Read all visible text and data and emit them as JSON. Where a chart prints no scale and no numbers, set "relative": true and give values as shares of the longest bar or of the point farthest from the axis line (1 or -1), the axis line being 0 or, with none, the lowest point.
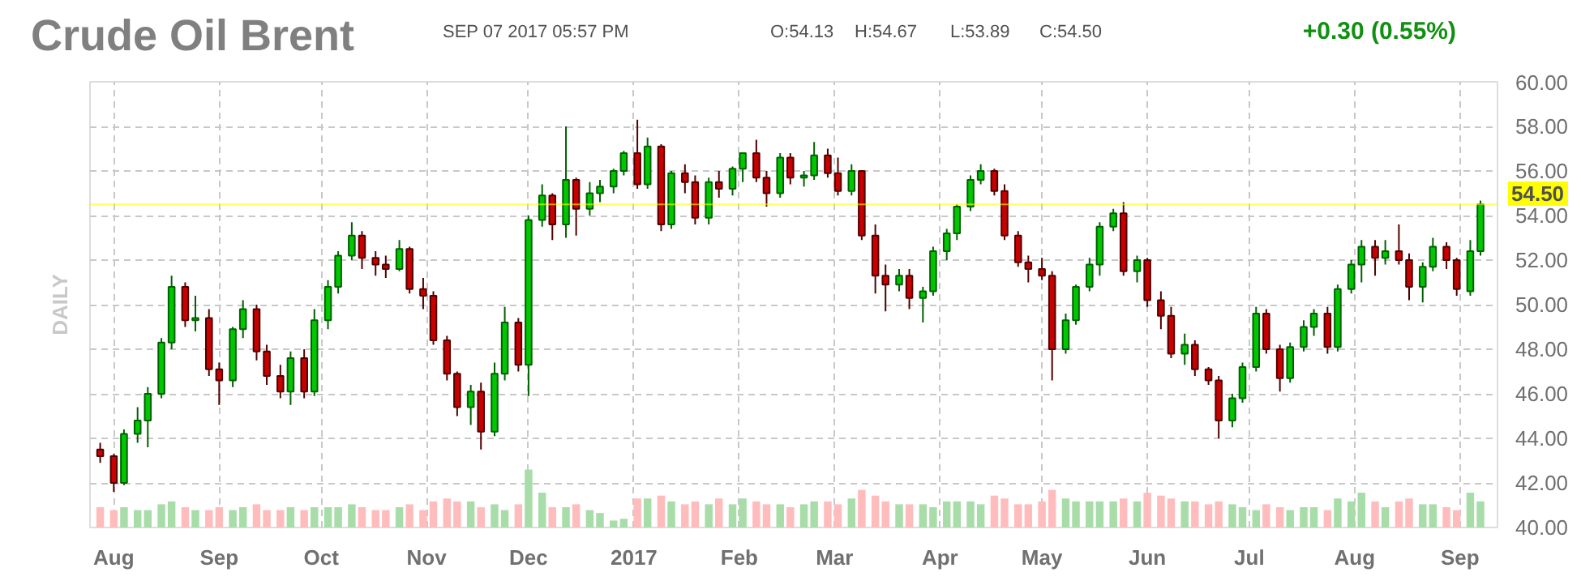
{
  "chart_data": [
    {
      "type": "candlestick",
      "title": "Crude Oil Brent",
      "ylabel": "DAILY",
      "annotations": [
        "SEP 07 2017 05:57 PM",
        "O:54.13",
        "H:54.67",
        "L:53.89",
        "C:54.50",
        "+0.30 (0.55%)"
      ],
      "colors": [
        "#c80000",
        "#c80000",
        "#00c800",
        "#00c800",
        "#00c800",
        "#00c800",
        "#00c800",
        "#c80000",
        "#00c800",
        "#c80000",
        "#c80000",
        "#00c800",
        "#00c800",
        "#c80000",
        "#c80000",
        "#c80000",
        "#00c800",
        "#c80000",
        "#00c800",
        "#00c800",
        "#00c800",
        "#00c800",
        "#c80000",
        "#c80000",
        "#c80000",
        "#00c800",
        "#c80000",
        "#c80000",
        "#c80000",
        "#c80000",
        "#c80000",
        "#00c800",
        "#c80000",
        "#00c800",
        "#00c800",
        "#c80000",
        "#00c800",
        "#00c800",
        "#c80000",
        "#00c800",
        "#c80000",
        "#00c800",
        "#00c800",
        "#00c800",
        "#00c800",
        "#c80000",
        "#00c800",
        "#c80000",
        "#00c800",
        "#c80000",
        "#c80000",
        "#00c800",
        "#c80000",
        "#00c800",
        "#00c800",
        "#c80000",
        "#c80000",
        "#00c800",
        "#c80000",
        "#00c800",
        "#00c800",
        "#c80000",
        "#c80000",
        "#00c800",
        "#c80000",
        "#c80000",
        "#c80000",
        "#00c800",
        "#c80000",
        "#00c800",
        "#00c800",
        "#00c800",
        "#00c800",
        "#00c800",
        "#00c800",
        "#c80000",
        "#c80000",
        "#c80000",
        "#c80000",
        "#c80000",
        "#c80000",
        "#00c800",
        "#00c800",
        "#00c800",
        "#00c800",
        "#00c800",
        "#c80000",
        "#00c800",
        "#c80000",
        "#c80000",
        "#c80000",
        "#00c800",
        "#c80000",
        "#c80000",
        "#c80000",
        "#00c800",
        "#00c800",
        "#00c800",
        "#c80000",
        "#c80000",
        "#00c800",
        "#00c800",
        "#00c800",
        "#c80000",
        "#00c800",
        "#00c800",
        "#00c800",
        "#c80000",
        "#00c800",
        "#c80000",
        "#c80000",
        "#00c800",
        "#00c800",
        "#c80000",
        "#c80000",
        "#00c800",
        "#00c800"
      ],
      "x": [
        "2016-07-28",
        "2016-08-01",
        "2016-08-04",
        "2016-08-08",
        "2016-08-11",
        "2016-08-15",
        "2016-08-18",
        "2016-08-22",
        "2016-08-25",
        "2016-08-29",
        "2016-09-01",
        "2016-09-05",
        "2016-09-08",
        "2016-09-12",
        "2016-09-15",
        "2016-09-19",
        "2016-09-22",
        "2016-09-26",
        "2016-09-29",
        "2016-10-03",
        "2016-10-06",
        "2016-10-10",
        "2016-10-13",
        "2016-10-17",
        "2016-10-20",
        "2016-10-24",
        "2016-10-27",
        "2016-10-31",
        "2016-11-03",
        "2016-11-07",
        "2016-11-10",
        "2016-11-14",
        "2016-11-17",
        "2016-11-21",
        "2016-11-24",
        "2016-11-28",
        "2016-12-01",
        "2016-12-05",
        "2016-12-08",
        "2016-12-12",
        "2016-12-15",
        "2016-12-19",
        "2016-12-22",
        "2016-12-26",
        "2016-12-29",
        "2017-01-02",
        "2017-01-05",
        "2017-01-09",
        "2017-01-12",
        "2017-01-16",
        "2017-01-19",
        "2017-01-23",
        "2017-01-26",
        "2017-01-30",
        "2017-02-02",
        "2017-02-06",
        "2017-02-09",
        "2017-02-13",
        "2017-02-16",
        "2017-02-20",
        "2017-02-23",
        "2017-02-27",
        "2017-03-02",
        "2017-03-06",
        "2017-03-09",
        "2017-03-13",
        "2017-03-16",
        "2017-03-20",
        "2017-03-23",
        "2017-03-27",
        "2017-03-30",
        "2017-04-03",
        "2017-04-06",
        "2017-04-10",
        "2017-04-13",
        "2017-04-17",
        "2017-04-20",
        "2017-04-24",
        "2017-04-27",
        "2017-05-01",
        "2017-05-04",
        "2017-05-08",
        "2017-05-11",
        "2017-05-15",
        "2017-05-18",
        "2017-05-22",
        "2017-05-25",
        "2017-05-29",
        "2017-06-01",
        "2017-06-05",
        "2017-06-08",
        "2017-06-12",
        "2017-06-15",
        "2017-06-19",
        "2017-06-22",
        "2017-06-26",
        "2017-06-29",
        "2017-07-03",
        "2017-07-06",
        "2017-07-10",
        "2017-07-13",
        "2017-07-17",
        "2017-07-20",
        "2017-07-24",
        "2017-07-27",
        "2017-07-31",
        "2017-08-03",
        "2017-08-07",
        "2017-08-10",
        "2017-08-14",
        "2017-08-17",
        "2017-08-21",
        "2017-08-24",
        "2017-08-28",
        "2017-08-31",
        "2017-09-04",
        "2017-09-07"
      ],
      "ohlc": [
        [
          43.5,
          43.8,
          42.9,
          43.2
        ],
        [
          43.2,
          43.3,
          41.6,
          42.0
        ],
        [
          42.0,
          44.4,
          41.9,
          44.2
        ],
        [
          44.2,
          45.4,
          43.8,
          44.8
        ],
        [
          44.8,
          46.3,
          43.6,
          46.0
        ],
        [
          46.0,
          48.5,
          45.8,
          48.3
        ],
        [
          48.3,
          51.3,
          48.0,
          50.8
        ],
        [
          50.8,
          51.0,
          49.0,
          49.3
        ],
        [
          49.3,
          50.4,
          48.8,
          49.4
        ],
        [
          49.4,
          49.8,
          46.8,
          47.1
        ],
        [
          47.1,
          47.4,
          45.5,
          46.6
        ],
        [
          46.6,
          49.0,
          46.3,
          48.9
        ],
        [
          48.9,
          50.2,
          48.5,
          49.8
        ],
        [
          49.8,
          50.0,
          47.5,
          47.9
        ],
        [
          47.9,
          48.2,
          46.4,
          46.8
        ],
        [
          46.8,
          47.3,
          45.8,
          46.1
        ],
        [
          46.1,
          47.9,
          45.5,
          47.6
        ],
        [
          47.6,
          48.0,
          45.8,
          46.1
        ],
        [
          46.1,
          49.8,
          45.9,
          49.3
        ],
        [
          49.3,
          51.1,
          48.9,
          50.8
        ],
        [
          50.8,
          52.4,
          50.5,
          52.2
        ],
        [
          52.2,
          53.7,
          52.0,
          53.1
        ],
        [
          53.1,
          53.3,
          51.6,
          52.1
        ],
        [
          52.1,
          52.4,
          51.3,
          51.8
        ],
        [
          51.8,
          52.2,
          51.2,
          51.6
        ],
        [
          51.6,
          52.9,
          51.5,
          52.5
        ],
        [
          52.5,
          52.6,
          50.5,
          50.7
        ],
        [
          50.7,
          51.2,
          49.8,
          50.4
        ],
        [
          50.4,
          50.6,
          48.2,
          48.4
        ],
        [
          48.4,
          48.6,
          46.6,
          46.9
        ],
        [
          46.9,
          47.0,
          45.0,
          45.4
        ],
        [
          45.4,
          46.4,
          44.6,
          46.1
        ],
        [
          46.1,
          46.5,
          43.5,
          44.3
        ],
        [
          44.3,
          47.4,
          44.1,
          46.9
        ],
        [
          46.9,
          49.9,
          46.6,
          49.2
        ],
        [
          49.2,
          49.4,
          47.0,
          47.3
        ],
        [
          47.3,
          54.0,
          45.9,
          53.8
        ],
        [
          53.8,
          55.4,
          53.5,
          54.9
        ],
        [
          54.9,
          55.0,
          52.9,
          53.6
        ],
        [
          53.6,
          58.0,
          53.0,
          55.6
        ],
        [
          55.6,
          55.7,
          53.1,
          54.3
        ],
        [
          54.3,
          55.5,
          54.0,
          55.0
        ],
        [
          55.0,
          55.6,
          54.6,
          55.3
        ],
        [
          55.3,
          56.1,
          55.0,
          56.0
        ],
        [
          56.0,
          56.9,
          55.8,
          56.8
        ],
        [
          56.8,
          58.3,
          55.2,
          55.4
        ],
        [
          55.4,
          57.5,
          55.2,
          57.1
        ],
        [
          57.1,
          57.2,
          53.3,
          53.6
        ],
        [
          53.6,
          56.0,
          53.4,
          55.9
        ],
        [
          55.9,
          56.3,
          55.0,
          55.5
        ],
        [
          55.5,
          55.8,
          53.6,
          53.9
        ],
        [
          53.9,
          55.7,
          53.6,
          55.5
        ],
        [
          55.5,
          56.0,
          54.8,
          55.2
        ],
        [
          55.2,
          56.2,
          54.9,
          56.1
        ],
        [
          56.1,
          56.8,
          55.5,
          56.8
        ],
        [
          56.8,
          57.4,
          55.5,
          55.7
        ],
        [
          55.7,
          56.0,
          54.4,
          55.0
        ],
        [
          55.0,
          56.8,
          54.8,
          56.6
        ],
        [
          56.6,
          56.8,
          55.4,
          55.7
        ],
        [
          55.7,
          56.0,
          55.3,
          55.8
        ],
        [
          55.8,
          57.3,
          55.6,
          56.7
        ],
        [
          56.7,
          57.0,
          55.7,
          55.9
        ],
        [
          55.9,
          56.6,
          54.9,
          55.1
        ],
        [
          55.1,
          56.3,
          54.9,
          56.0
        ],
        [
          56.0,
          56.0,
          52.9,
          53.1
        ],
        [
          53.1,
          53.6,
          50.5,
          51.3
        ],
        [
          51.3,
          51.8,
          49.7,
          50.9
        ],
        [
          50.9,
          51.6,
          50.6,
          51.3
        ],
        [
          51.3,
          51.6,
          49.8,
          50.3
        ],
        [
          50.3,
          50.8,
          49.2,
          50.6
        ],
        [
          50.6,
          52.6,
          50.4,
          52.4
        ],
        [
          52.4,
          53.4,
          52.0,
          53.2
        ],
        [
          53.2,
          54.5,
          52.9,
          54.4
        ],
        [
          54.4,
          55.8,
          54.2,
          55.6
        ],
        [
          55.6,
          56.3,
          55.4,
          56.0
        ],
        [
          56.0,
          56.1,
          54.9,
          55.1
        ],
        [
          55.1,
          55.4,
          52.9,
          53.1
        ],
        [
          53.1,
          53.3,
          51.7,
          51.9
        ],
        [
          51.9,
          52.2,
          51.0,
          51.6
        ],
        [
          51.6,
          52.1,
          51.1,
          51.3
        ],
        [
          51.3,
          51.5,
          46.6,
          48.0
        ],
        [
          48.0,
          49.6,
          47.8,
          49.3
        ],
        [
          49.3,
          50.9,
          49.1,
          50.8
        ],
        [
          50.8,
          52.1,
          50.6,
          51.8
        ],
        [
          51.8,
          53.7,
          51.3,
          53.5
        ],
        [
          53.5,
          54.3,
          53.3,
          54.1
        ],
        [
          54.1,
          54.6,
          51.3,
          51.5
        ],
        [
          51.5,
          52.2,
          51.0,
          52.0
        ],
        [
          52.0,
          52.1,
          49.9,
          50.2
        ],
        [
          50.2,
          50.6,
          48.9,
          49.5
        ],
        [
          49.5,
          49.9,
          47.6,
          47.8
        ],
        [
          47.8,
          48.7,
          47.3,
          48.2
        ],
        [
          48.2,
          48.4,
          46.8,
          47.1
        ],
        [
          47.1,
          47.2,
          46.4,
          46.6
        ],
        [
          46.6,
          46.8,
          44.0,
          44.8
        ],
        [
          44.8,
          46.0,
          44.5,
          45.8
        ],
        [
          45.8,
          47.4,
          45.6,
          47.2
        ],
        [
          47.2,
          49.9,
          47.0,
          49.6
        ],
        [
          49.6,
          49.8,
          47.8,
          48.0
        ],
        [
          48.0,
          48.2,
          46.1,
          46.7
        ],
        [
          46.7,
          48.3,
          46.5,
          48.1
        ],
        [
          48.1,
          49.3,
          47.9,
          49.0
        ],
        [
          49.0,
          49.8,
          48.6,
          49.6
        ],
        [
          49.6,
          49.9,
          47.8,
          48.1
        ],
        [
          48.1,
          50.9,
          47.9,
          50.7
        ],
        [
          50.7,
          52.0,
          50.5,
          51.8
        ],
        [
          51.8,
          52.9,
          51.0,
          52.6
        ],
        [
          52.6,
          52.9,
          51.3,
          52.1
        ],
        [
          52.1,
          52.9,
          51.8,
          52.4
        ],
        [
          52.4,
          53.6,
          51.8,
          52.0
        ],
        [
          52.0,
          52.3,
          50.2,
          50.8
        ],
        [
          50.8,
          51.9,
          50.1,
          51.7
        ],
        [
          51.7,
          53.0,
          51.5,
          52.6
        ],
        [
          52.6,
          52.8,
          51.6,
          52.0
        ],
        [
          52.0,
          52.1,
          50.4,
          50.7
        ],
        [
          50.6,
          52.9,
          50.4,
          52.4
        ],
        [
          52.4,
          54.67,
          52.2,
          54.5
        ]
      ],
      "xlim": [
        "2016-07-25",
        "2017-09-12"
      ],
      "xticks": [
        {
          "value": "2016-08-01",
          "label": "Aug"
        },
        {
          "value": "2016-09-01",
          "label": "Sep"
        },
        {
          "value": "2016-10-01",
          "label": "Oct"
        },
        {
          "value": "2016-11-01",
          "label": "Nov"
        },
        {
          "value": "2016-12-01",
          "label": "Dec"
        },
        {
          "value": "2017-01-01",
          "label": "2017"
        },
        {
          "value": "2017-02-01",
          "label": "Feb"
        },
        {
          "value": "2017-03-01",
          "label": "Mar"
        },
        {
          "value": "2017-04-01",
          "label": "Apr"
        },
        {
          "value": "2017-05-01",
          "label": "May"
        },
        {
          "value": "2017-06-01",
          "label": "Jun"
        },
        {
          "value": "2017-07-01",
          "label": "Jul"
        },
        {
          "value": "2017-08-01",
          "label": "Aug"
        },
        {
          "value": "2017-09-01",
          "label": "Sep"
        }
      ],
      "ylim": [
        40,
        60
      ],
      "yticks": [
        {
          "value": 40,
          "label": "40.00"
        },
        {
          "value": 42,
          "label": "42.00"
        },
        {
          "value": 44,
          "label": "44.00"
        },
        {
          "value": 46,
          "label": "46.00"
        },
        {
          "value": 48,
          "label": "48.00"
        },
        {
          "value": 50,
          "label": "50.00"
        },
        {
          "value": 52,
          "label": "52.00"
        },
        {
          "value": 54,
          "label": "54.00"
        },
        {
          "value": 56,
          "label": "56.00"
        },
        {
          "value": 58,
          "label": "58.00"
        },
        {
          "value": 60,
          "label": "60.00"
        }
      ],
      "ref_lines": [
        {
          "axis": "y",
          "value": 54.5,
          "label": "54.50",
          "color": "#ffff00"
        }
      ],
      "grid": true
    },
    {
      "type": "bar",
      "relative": true,
      "tick_labels": false,
      "xlim": [
        "2016-07-25",
        "2017-09-12"
      ],
      "x": [
        "2016-07-28",
        "2016-08-01",
        "2016-08-04",
        "2016-08-08",
        "2016-08-11",
        "2016-08-15",
        "2016-08-18",
        "2016-08-22",
        "2016-08-25",
        "2016-08-29",
        "2016-09-01",
        "2016-09-05",
        "2016-09-08",
        "2016-09-12",
        "2016-09-15",
        "2016-09-19",
        "2016-09-22",
        "2016-09-26",
        "2016-09-29",
        "2016-10-03",
        "2016-10-06",
        "2016-10-10",
        "2016-10-13",
        "2016-10-17",
        "2016-10-20",
        "2016-10-24",
        "2016-10-27",
        "2016-10-31",
        "2016-11-03",
        "2016-11-07",
        "2016-11-10",
        "2016-11-14",
        "2016-11-17",
        "2016-11-21",
        "2016-11-24",
        "2016-11-28",
        "2016-12-01",
        "2016-12-05",
        "2016-12-08",
        "2016-12-12",
        "2016-12-15",
        "2016-12-19",
        "2016-12-22",
        "2016-12-26",
        "2016-12-29",
        "2017-01-02",
        "2017-01-05",
        "2017-01-09",
        "2017-01-12",
        "2017-01-16",
        "2017-01-19",
        "2017-01-23",
        "2017-01-26",
        "2017-01-30",
        "2017-02-02",
        "2017-02-06",
        "2017-02-09",
        "2017-02-13",
        "2017-02-16",
        "2017-02-20",
        "2017-02-23",
        "2017-02-27",
        "2017-03-02",
        "2017-03-06",
        "2017-03-09",
        "2017-03-13",
        "2017-03-16",
        "2017-03-20",
        "2017-03-23",
        "2017-03-27",
        "2017-03-30",
        "2017-04-03",
        "2017-04-06",
        "2017-04-10",
        "2017-04-13",
        "2017-04-17",
        "2017-04-20",
        "2017-04-24",
        "2017-04-27",
        "2017-05-01",
        "2017-05-04",
        "2017-05-08",
        "2017-05-11",
        "2017-05-15",
        "2017-05-18",
        "2017-05-22",
        "2017-05-25",
        "2017-05-29",
        "2017-06-01",
        "2017-06-05",
        "2017-06-08",
        "2017-06-12",
        "2017-06-15",
        "2017-06-19",
        "2017-06-22",
        "2017-06-26",
        "2017-06-29",
        "2017-07-03",
        "2017-07-06",
        "2017-07-10",
        "2017-07-13",
        "2017-07-17",
        "2017-07-20",
        "2017-07-24",
        "2017-07-27",
        "2017-07-31",
        "2017-08-03",
        "2017-08-07",
        "2017-08-10",
        "2017-08-14",
        "2017-08-17",
        "2017-08-21",
        "2017-08-24",
        "2017-08-28",
        "2017-08-31",
        "2017-09-04",
        "2017-09-07"
      ],
      "colors": [
        "#ffbcbc",
        "#ffbcbc",
        "#a8dca8",
        "#a8dca8",
        "#a8dca8",
        "#a8dca8",
        "#a8dca8",
        "#ffbcbc",
        "#a8dca8",
        "#ffbcbc",
        "#ffbcbc",
        "#a8dca8",
        "#a8dca8",
        "#ffbcbc",
        "#ffbcbc",
        "#ffbcbc",
        "#a8dca8",
        "#ffbcbc",
        "#a8dca8",
        "#a8dca8",
        "#a8dca8",
        "#a8dca8",
        "#ffbcbc",
        "#ffbcbc",
        "#ffbcbc",
        "#a8dca8",
        "#ffbcbc",
        "#ffbcbc",
        "#ffbcbc",
        "#ffbcbc",
        "#ffbcbc",
        "#a8dca8",
        "#ffbcbc",
        "#a8dca8",
        "#a8dca8",
        "#ffbcbc",
        "#a8dca8",
        "#a8dca8",
        "#ffbcbc",
        "#a8dca8",
        "#ffbcbc",
        "#a8dca8",
        "#a8dca8",
        "#a8dca8",
        "#a8dca8",
        "#ffbcbc",
        "#a8dca8",
        "#ffbcbc",
        "#a8dca8",
        "#ffbcbc",
        "#ffbcbc",
        "#a8dca8",
        "#ffbcbc",
        "#a8dca8",
        "#a8dca8",
        "#ffbcbc",
        "#ffbcbc",
        "#a8dca8",
        "#ffbcbc",
        "#a8dca8",
        "#a8dca8",
        "#ffbcbc",
        "#ffbcbc",
        "#a8dca8",
        "#ffbcbc",
        "#ffbcbc",
        "#ffbcbc",
        "#a8dca8",
        "#ffbcbc",
        "#a8dca8",
        "#a8dca8",
        "#a8dca8",
        "#a8dca8",
        "#a8dca8",
        "#a8dca8",
        "#ffbcbc",
        "#ffbcbc",
        "#ffbcbc",
        "#ffbcbc",
        "#ffbcbc",
        "#ffbcbc",
        "#a8dca8",
        "#a8dca8",
        "#a8dca8",
        "#a8dca8",
        "#a8dca8",
        "#ffbcbc",
        "#a8dca8",
        "#ffbcbc",
        "#ffbcbc",
        "#ffbcbc",
        "#a8dca8",
        "#ffbcbc",
        "#ffbcbc",
        "#ffbcbc",
        "#a8dca8",
        "#a8dca8",
        "#a8dca8",
        "#ffbcbc",
        "#ffbcbc",
        "#a8dca8",
        "#a8dca8",
        "#a8dca8",
        "#ffbcbc",
        "#a8dca8",
        "#a8dca8",
        "#a8dca8",
        "#ffbcbc",
        "#a8dca8",
        "#ffbcbc",
        "#ffbcbc",
        "#a8dca8",
        "#a8dca8",
        "#ffbcbc",
        "#ffbcbc",
        "#a8dca8",
        "#a8dca8"
      ],
      "values": [
        0.35,
        0.3,
        0.35,
        0.3,
        0.3,
        0.4,
        0.45,
        0.35,
        0.3,
        0.3,
        0.35,
        0.3,
        0.35,
        0.4,
        0.3,
        0.3,
        0.35,
        0.3,
        0.35,
        0.35,
        0.35,
        0.4,
        0.35,
        0.3,
        0.3,
        0.35,
        0.4,
        0.3,
        0.45,
        0.5,
        0.45,
        0.45,
        0.35,
        0.4,
        0.3,
        0.4,
        1.0,
        0.6,
        0.35,
        0.35,
        0.4,
        0.3,
        0.25,
        0.12,
        0.15,
        0.5,
        0.5,
        0.55,
        0.45,
        0.4,
        0.45,
        0.4,
        0.5,
        0.4,
        0.5,
        0.45,
        0.4,
        0.4,
        0.35,
        0.4,
        0.45,
        0.45,
        0.4,
        0.5,
        0.65,
        0.55,
        0.45,
        0.4,
        0.4,
        0.4,
        0.35,
        0.45,
        0.45,
        0.45,
        0.4,
        0.55,
        0.5,
        0.4,
        0.4,
        0.45,
        0.65,
        0.5,
        0.45,
        0.45,
        0.45,
        0.45,
        0.5,
        0.45,
        0.6,
        0.55,
        0.5,
        0.45,
        0.45,
        0.4,
        0.45,
        0.4,
        0.35,
        0.3,
        0.4,
        0.35,
        0.3,
        0.35,
        0.35,
        0.3,
        0.5,
        0.45,
        0.6,
        0.45,
        0.35,
        0.45,
        0.5,
        0.4,
        0.4,
        0.35,
        0.3,
        0.6,
        0.45
      ]
    }
  ]
}
